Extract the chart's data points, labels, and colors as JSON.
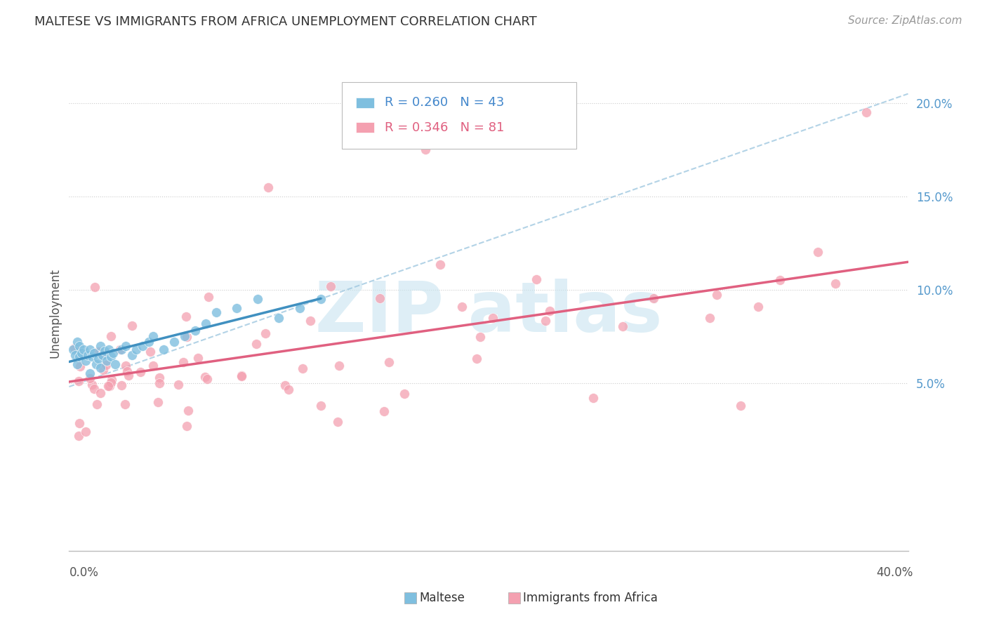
{
  "title": "MALTESE VS IMMIGRANTS FROM AFRICA UNEMPLOYMENT CORRELATION CHART",
  "source": "Source: ZipAtlas.com",
  "ylabel": "Unemployment",
  "y_ticks": [
    "5.0%",
    "10.0%",
    "15.0%",
    "20.0%"
  ],
  "y_tick_vals": [
    0.05,
    0.1,
    0.15,
    0.2
  ],
  "xlim": [
    0.0,
    0.4
  ],
  "ylim": [
    -0.04,
    0.215
  ],
  "legend_entry1": "R = 0.260   N = 43",
  "legend_entry2": "R = 0.346   N = 81",
  "legend_label1": "Maltese",
  "legend_label2": "Immigrants from Africa",
  "maltese_color": "#7fbfdf",
  "africa_color": "#f4a0b0",
  "trendline_color": "#a8d0e8",
  "africa_line_color": "#e06080",
  "maltese_line_color": "#4090c0",
  "watermark_color": "#c8e4f0"
}
